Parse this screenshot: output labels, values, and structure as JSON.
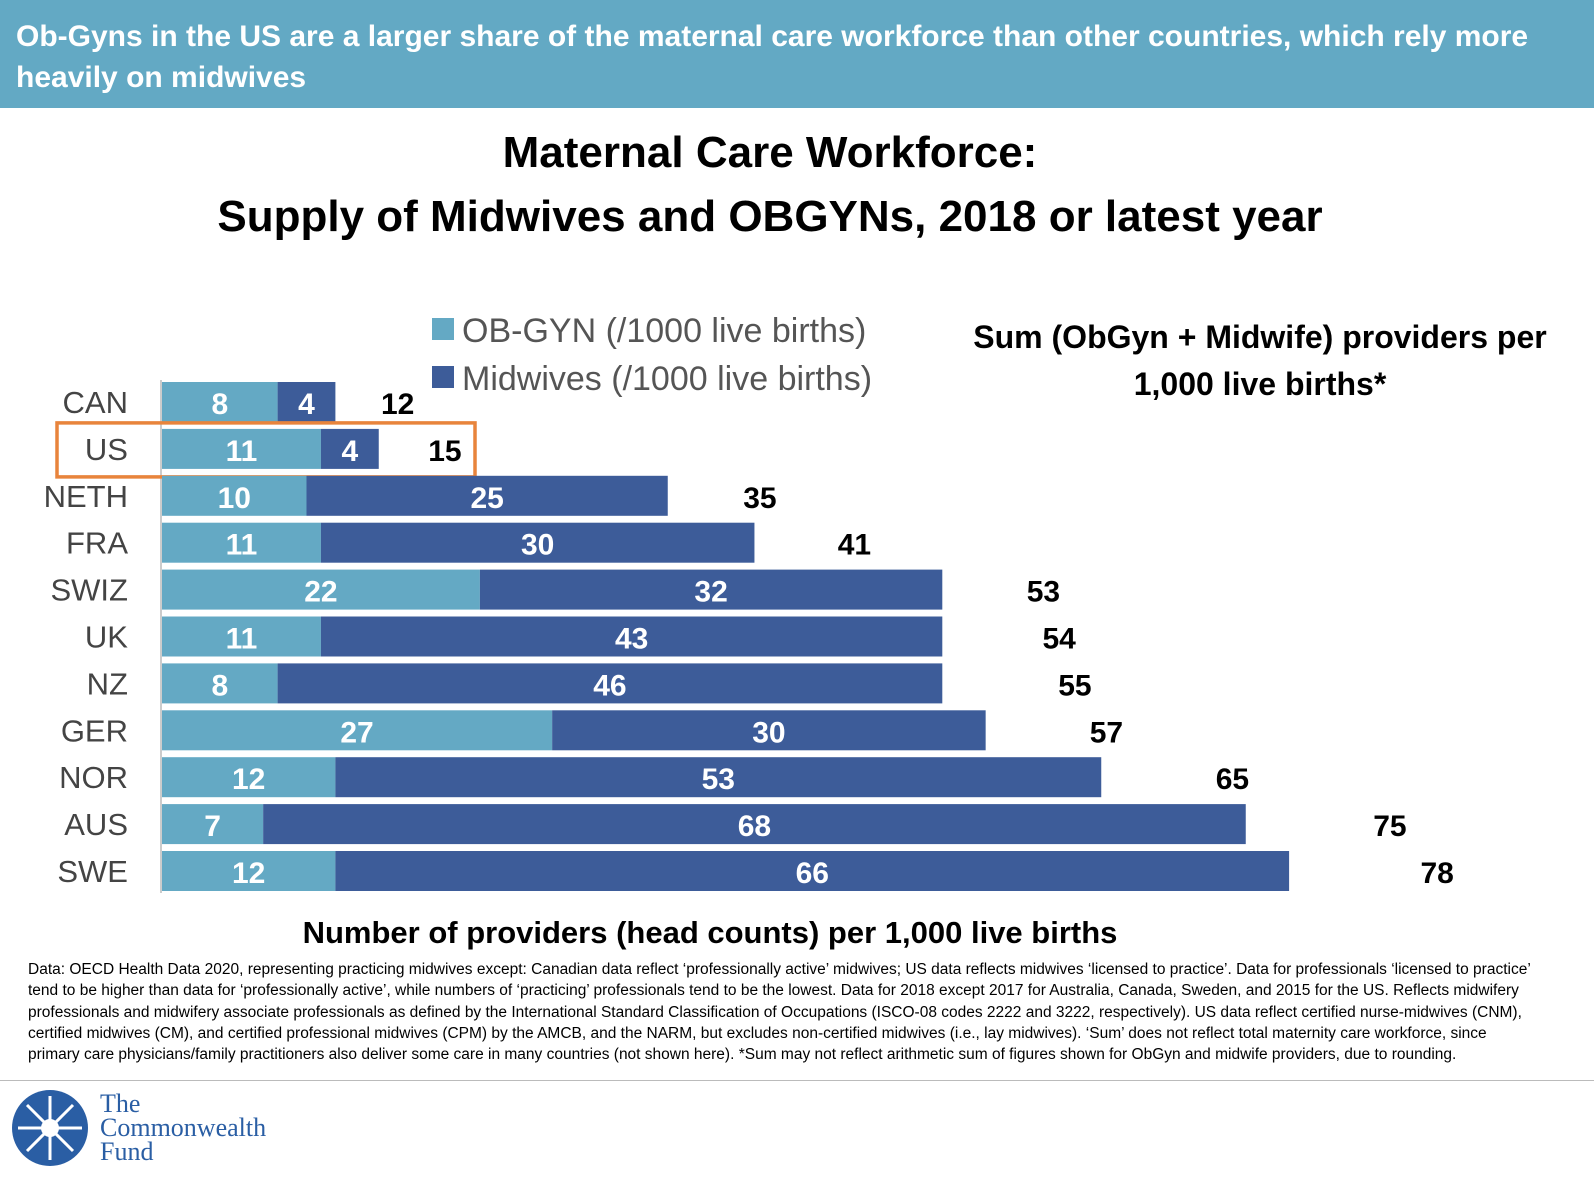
{
  "header": {
    "text": "Ob-Gyns in the US are a larger share of the maternal care workforce than other countries, which rely more heavily on midwives"
  },
  "colors": {
    "header": "#63a9c4",
    "obgyn": "#64a9c4",
    "midwives": "#3d5c99",
    "highlight": "#e8843c"
  },
  "chart_data": {
    "type": "bar",
    "orientation": "horizontal",
    "stacked": true,
    "title": "Maternal Care Workforce:",
    "subtitle": "Supply of Midwives and OBGYNs, 2018 or latest year",
    "xlabel": "Number of providers (head counts) per 1,000 live births",
    "sum_label": "Sum (ObGyn + Midwife) providers per 1,000 live births*",
    "categories": [
      "CAN",
      "US",
      "NETH",
      "FRA",
      "SWIZ",
      "UK",
      "NZ",
      "GER",
      "NOR",
      "AUS",
      "SWE"
    ],
    "series": [
      {
        "name": "OB-GYN (/1000 live births)",
        "values": [
          8,
          11,
          10,
          11,
          22,
          11,
          8,
          27,
          12,
          7,
          12
        ]
      },
      {
        "name": "Midwives (/1000 live births)",
        "values": [
          4,
          4,
          25,
          30,
          32,
          43,
          46,
          30,
          53,
          68,
          66
        ]
      }
    ],
    "sums": [
      12,
      15,
      35,
      41,
      53,
      54,
      55,
      57,
      65,
      75,
      78
    ],
    "highlighted": "US",
    "legend_position": "top",
    "grid": false
  },
  "footnote": "Data: OECD Health Data 2020, representing practicing midwives except: Canadian data reflect ‘professionally active’ midwives; US data reflects midwives ‘licensed to practice’. Data for professionals ‘licensed to practice’ tend to be higher than data for ‘professionally active’, while numbers of ‘practicing’ professionals tend to be the lowest. Data for 2018 except 2017 for Australia, Canada, Sweden, and 2015 for the US. Reflects midwifery professionals and midwifery associate professionals as defined by the International Standard Classification of Occupations (ISCO-08 codes 2222 and 3222, respectively). US data reflect certified nurse-midwives (CNM), certified midwives (CM), and certified professional midwives (CPM) by the AMCB, and the NARM, but excludes non-certified midwives (i.e., lay midwives). ‘Sum’ does not reflect total maternity care workforce, since primary care physicians/family practitioners also deliver some care in many countries (not shown here). *Sum may not reflect arithmetic sum of figures shown for ObGyn and midwife providers, due to rounding.",
  "logo": {
    "line1": "The",
    "line2": "Commonwealth",
    "line3": "Fund"
  }
}
